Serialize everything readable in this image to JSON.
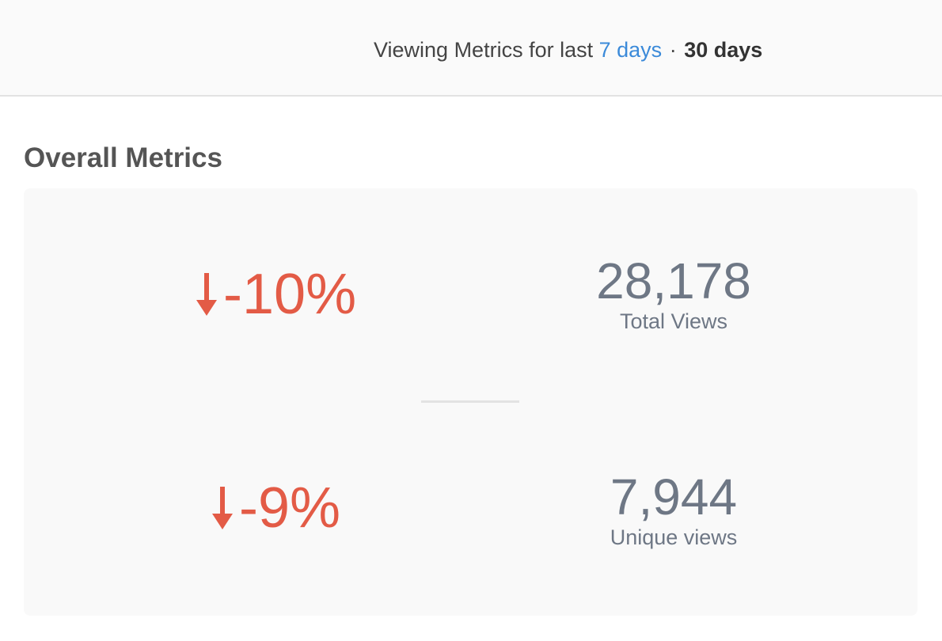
{
  "header": {
    "prefix": "Viewing Metrics for last",
    "options": [
      {
        "label": "7 days",
        "active": false
      },
      {
        "label": "30 days",
        "active": true
      }
    ],
    "separator": "·"
  },
  "section": {
    "title": "Overall Metrics"
  },
  "metrics": [
    {
      "change": "-10%",
      "direction": "down",
      "value": "28,178",
      "label": "Total Views"
    },
    {
      "change": "-9%",
      "direction": "down",
      "value": "7,944",
      "label": "Unique views"
    }
  ],
  "colors": {
    "link": "#3b8ad9",
    "negative": "#e35b46",
    "metric_text": "#6e7785",
    "panel_bg": "#f9f9f9"
  },
  "icons": {
    "change_arrow": "arrow-down-icon"
  }
}
